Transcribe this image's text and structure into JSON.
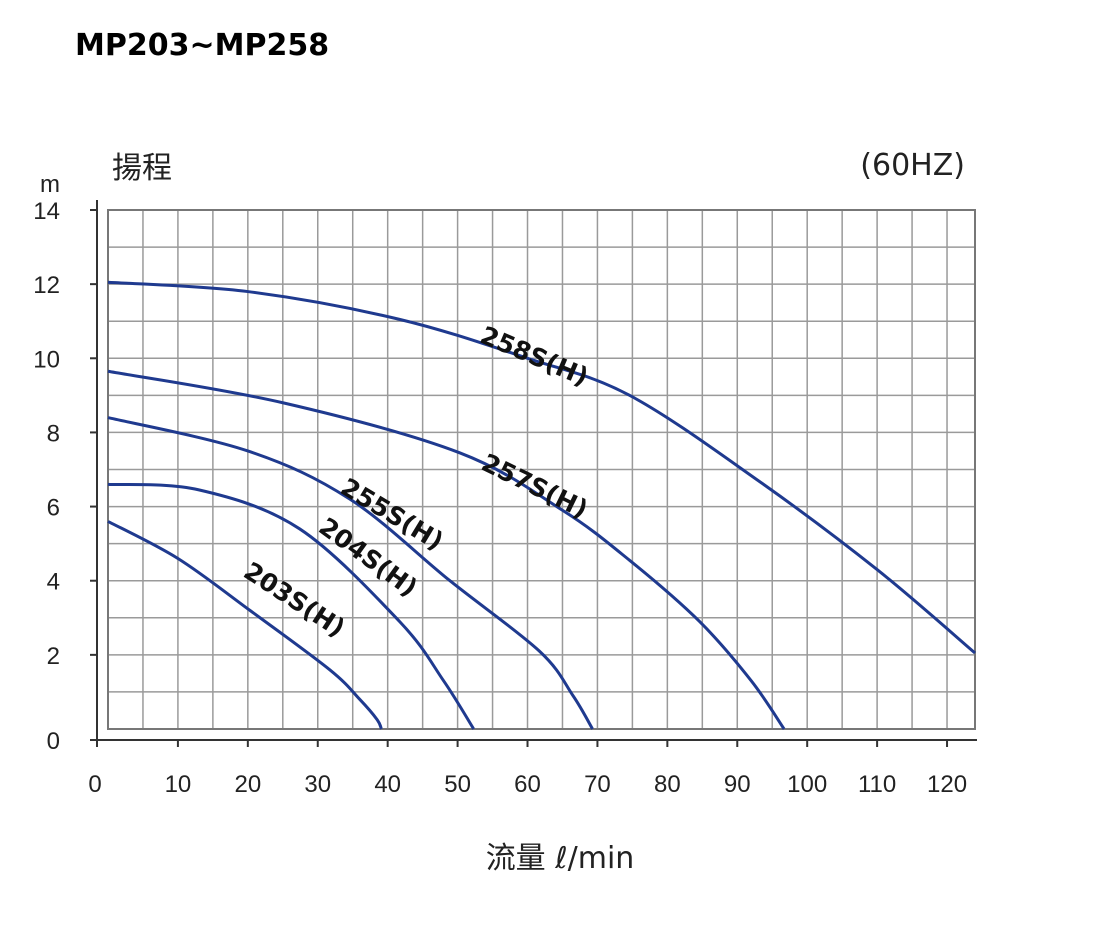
{
  "chart_data": {
    "type": "line",
    "title": "MP203~MP258",
    "subtitle": "(60HZ)",
    "ylabel": "揚程",
    "yunit": "m",
    "xlabel": "流量 ℓ/min",
    "xlim": [
      0,
      124
    ],
    "ylim": [
      0,
      14
    ],
    "xticks": [
      0,
      10,
      20,
      30,
      40,
      50,
      60,
      70,
      80,
      90,
      100,
      110,
      120
    ],
    "yticks": [
      0,
      2,
      4,
      6,
      8,
      10,
      12,
      14
    ],
    "grid": true,
    "line_color": "#1f3a8f",
    "series": [
      {
        "name": "258S(H)",
        "points": [
          [
            0,
            12.05
          ],
          [
            20,
            11.8
          ],
          [
            41.7,
            11.05
          ],
          [
            60,
            10.0
          ],
          [
            74.6,
            9.0
          ],
          [
            93,
            6.7
          ],
          [
            110,
            4.3
          ],
          [
            124,
            2.05
          ]
        ]
      },
      {
        "name": "257S(H)",
        "points": [
          [
            0,
            9.65
          ],
          [
            25,
            8.8
          ],
          [
            50.3,
            7.45
          ],
          [
            65,
            5.9
          ],
          [
            74.6,
            4.55
          ],
          [
            84.6,
            2.9
          ],
          [
            92,
            1.3
          ],
          [
            96.7,
            0
          ]
        ]
      },
      {
        "name": "255S(H)",
        "points": [
          [
            0,
            8.4
          ],
          [
            20,
            7.5
          ],
          [
            34.6,
            6.2
          ],
          [
            48.9,
            4.0
          ],
          [
            61.7,
            2.1
          ],
          [
            66.5,
            0.9
          ],
          [
            69.3,
            0
          ]
        ]
      },
      {
        "name": "204S(H)",
        "points": [
          [
            0,
            6.6
          ],
          [
            13,
            6.45
          ],
          [
            27.4,
            5.4
          ],
          [
            41.7,
            2.9
          ],
          [
            48,
            1.3
          ],
          [
            52.3,
            0
          ]
        ]
      },
      {
        "name": "203S(H)",
        "points": [
          [
            0,
            5.6
          ],
          [
            10,
            4.6
          ],
          [
            20.3,
            3.2
          ],
          [
            31.7,
            1.6
          ],
          [
            36,
            0.8
          ],
          [
            38.5,
            0.25
          ],
          [
            39.1,
            0
          ]
        ]
      }
    ]
  }
}
